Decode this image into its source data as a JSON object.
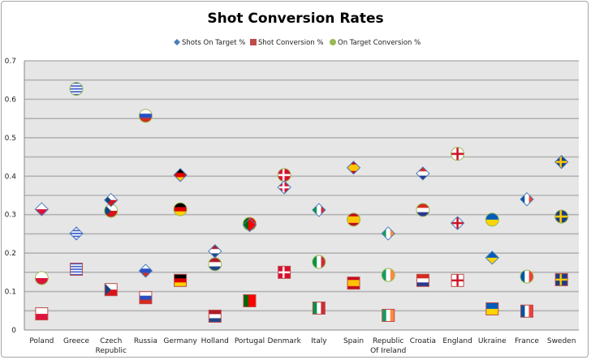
{
  "chart_data": {
    "type": "scatter",
    "title": "Shot Conversion Rates",
    "xlabel": "",
    "ylabel": "",
    "ylim": [
      0,
      0.7
    ],
    "yticks": [
      "0",
      "0.1",
      "0.2",
      "0.3",
      "0.4",
      "0.5",
      "0.6",
      "0.7"
    ],
    "grid": true,
    "legend_position": "top",
    "categories": [
      "Poland",
      "Greece",
      "Czech Republic",
      "Russia",
      "Germany",
      "Holland",
      "Portugal",
      "Denmark",
      "Italy",
      "Spain",
      "Republic Of Ireland",
      "Croatia",
      "England",
      "Ukraine",
      "France",
      "Sweden"
    ],
    "category_lines": [
      [
        "Poland"
      ],
      [
        "Greece"
      ],
      [
        "Czech",
        "Republic"
      ],
      [
        "Russia"
      ],
      [
        "Germany"
      ],
      [
        "Holland"
      ],
      [
        "Portugal"
      ],
      [
        "Denmark"
      ],
      [
        "Italy"
      ],
      [
        "Spain"
      ],
      [
        "Republic",
        "Of Ireland"
      ],
      [
        "Croatia"
      ],
      [
        "England"
      ],
      [
        "Ukraine"
      ],
      [
        "France"
      ],
      [
        "Sweden"
      ]
    ],
    "series": [
      {
        "name": "Shots On Target %",
        "marker": "diamond",
        "color": "#4a7ebb",
        "values": [
          0.314,
          0.251,
          0.338,
          0.154,
          0.403,
          0.205,
          0.273,
          0.371,
          0.312,
          0.422,
          0.251,
          0.407,
          0.278,
          0.188,
          0.34,
          0.437
        ]
      },
      {
        "name": "Shot Conversion %",
        "marker": "square",
        "color": "#be4b48",
        "values": [
          0.042,
          0.158,
          0.105,
          0.084,
          0.129,
          0.036,
          0.076,
          0.15,
          0.057,
          0.122,
          0.038,
          0.129,
          0.129,
          0.055,
          0.049,
          0.131
        ]
      },
      {
        "name": "On Target Conversion %",
        "marker": "circle",
        "color": "#98b954",
        "values": [
          0.135,
          0.627,
          0.31,
          0.557,
          0.314,
          0.171,
          0.276,
          0.403,
          0.177,
          0.287,
          0.143,
          0.312,
          0.458,
          0.287,
          0.139,
          0.295
        ]
      }
    ],
    "marker_fill": "country flags",
    "plot_background": "#e6e6e6",
    "gridline_color": "#b3b3b3"
  }
}
